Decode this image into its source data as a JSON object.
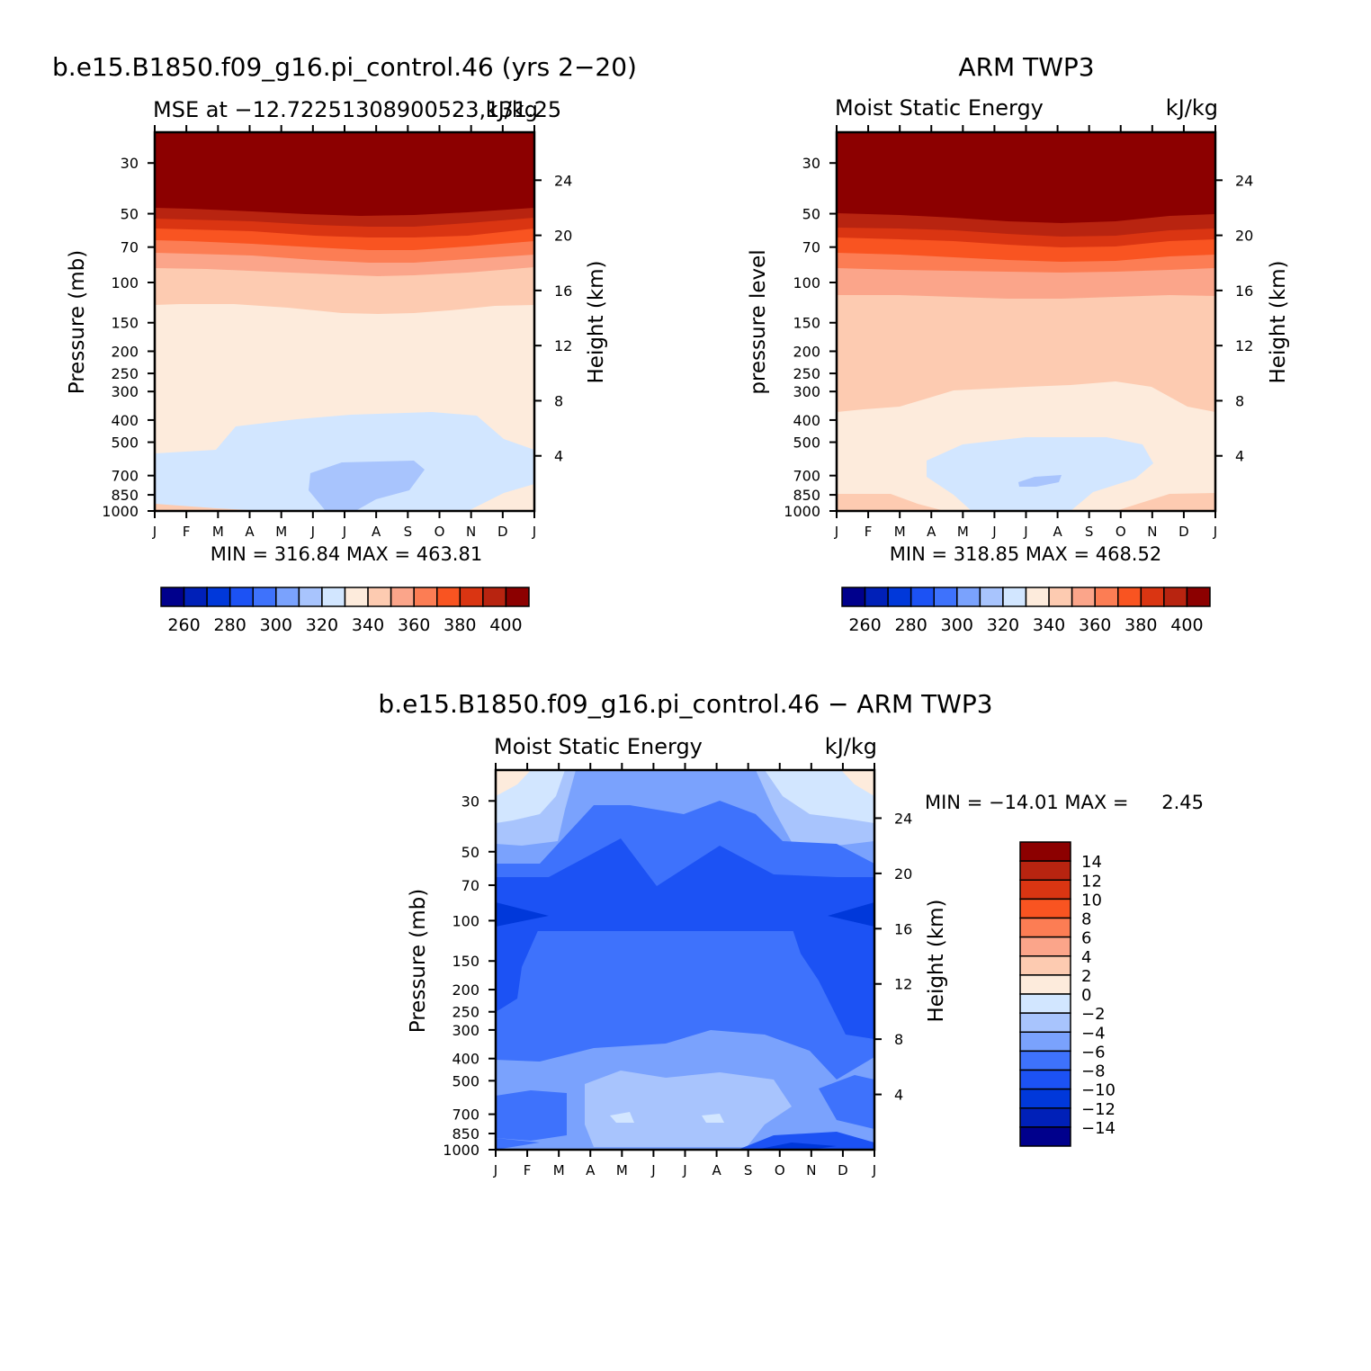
{
  "chart_data": [
    {
      "type": "heatmap",
      "panel": "model",
      "title": "b.e15.B1850.f09_g16.pi_control.46 (yrs 2−20)",
      "subtitle_left": "MSE at −12.72251308900523,131.25",
      "subtitle_right": "kJ/kg",
      "ylabel": "Pressure (mb)",
      "ylabel_right": "Height (km)",
      "months": [
        "J",
        "F",
        "M",
        "A",
        "M",
        "J",
        "J",
        "A",
        "S",
        "O",
        "N",
        "D",
        "J"
      ],
      "pressure_ticks": [
        "30",
        "50",
        "70",
        "100",
        "150",
        "200",
        "250",
        "300",
        "400",
        "500",
        "700",
        "850",
        "1000"
      ],
      "height_ticks": [
        "24",
        "20",
        "16",
        "12",
        "8",
        "4"
      ],
      "stats": "MIN = 316.84 MAX = 463.81",
      "min": 316.84,
      "max": 463.81,
      "colorbar_labels": [
        "260",
        "280",
        "300",
        "320",
        "340",
        "360",
        "380",
        "400"
      ],
      "contours": [
        {
          "level": 320,
          "color": "#d6e8ff",
          "description": "below-freezing band 400-850 mb, Apr-Nov"
        },
        {
          "level": 310,
          "color": "#b2ccfb",
          "description": "core near 700 mb, Jun-Aug"
        },
        {
          "level": 330,
          "color": "#feeadb",
          "description": "150-500 mb"
        },
        {
          "level": 340,
          "color": "#fdcfb5",
          "description": "100-150 mb"
        },
        {
          "level": 350,
          "color": "#fba98b",
          "description": "near 90 mb"
        },
        {
          "level": 360,
          "color": "#fc8a63",
          "description": "near 80 mb"
        },
        {
          "level": 370,
          "color": "#fd6b3c",
          "description": "near 70 mb"
        },
        {
          "level": 380,
          "color": "#ef4a1c",
          "description": "near 60 mb"
        },
        {
          "level": 390,
          "color": "#d03a11",
          "description": "near 55 mb"
        },
        {
          "level": 400,
          "color": "#8c0000",
          "description": "above 50 mb"
        }
      ]
    },
    {
      "type": "heatmap",
      "panel": "obs",
      "title": "ARM TWP3",
      "subtitle_left": "Moist Static Energy",
      "subtitle_right": "kJ/kg",
      "ylabel": "pressure level",
      "ylabel_right": "Height (km)",
      "months": [
        "J",
        "F",
        "M",
        "A",
        "M",
        "J",
        "J",
        "A",
        "S",
        "O",
        "N",
        "D",
        "J"
      ],
      "pressure_ticks": [
        "30",
        "50",
        "70",
        "100",
        "150",
        "200",
        "250",
        "300",
        "400",
        "500",
        "700",
        "850",
        "1000"
      ],
      "height_ticks": [
        "24",
        "20",
        "16",
        "12",
        "8",
        "4"
      ],
      "stats": "MIN = 318.85 MAX = 468.52",
      "min": 318.85,
      "max": 468.52,
      "colorbar_labels": [
        "260",
        "280",
        "300",
        "320",
        "340",
        "360",
        "380",
        "400"
      ]
    },
    {
      "type": "heatmap",
      "panel": "difference",
      "title": "b.e15.B1850.f09_g16.pi_control.46 − ARM TWP3",
      "subtitle_left": "Moist Static Energy",
      "subtitle_right": "kJ/kg",
      "ylabel": "Pressure (mb)",
      "ylabel_right": "Height (km)",
      "months": [
        "J",
        "F",
        "M",
        "A",
        "M",
        "J",
        "J",
        "A",
        "S",
        "O",
        "N",
        "D",
        "J"
      ],
      "pressure_ticks": [
        "30",
        "50",
        "70",
        "100",
        "150",
        "200",
        "250",
        "300",
        "400",
        "500",
        "700",
        "850",
        "1000"
      ],
      "height_ticks": [
        "24",
        "20",
        "16",
        "12",
        "8",
        "4"
      ],
      "stats_label": "MIN = −14.01 MAX =",
      "stats_max": "2.45",
      "min": -14.01,
      "max": 2.45,
      "colorbar_labels": [
        "14",
        "12",
        "10",
        "8",
        "6",
        "4",
        "2",
        "0",
        "−2",
        "−4",
        "−6",
        "−8",
        "−10",
        "−12",
        "−14"
      ]
    }
  ],
  "colors": {
    "abs_scale": [
      "#00008c",
      "#0020b8",
      "#0038da",
      "#1c52f4",
      "#3e72fc",
      "#7aa2fd",
      "#a8c4fd",
      "#d2e6ff",
      "#fdebdc",
      "#fdcbb1",
      "#fba58a",
      "#fc7d54",
      "#f95421",
      "#da3512",
      "#b82410",
      "#8c0000"
    ],
    "diff_scale": [
      "#8c0000",
      "#b82410",
      "#da3512",
      "#f95421",
      "#fc7d54",
      "#fba58a",
      "#fdcbb1",
      "#fdebdc",
      "#d2e6ff",
      "#a8c4fd",
      "#7aa2fd",
      "#3e72fc",
      "#1c52f4",
      "#0038da",
      "#0020b8",
      "#00008c"
    ]
  }
}
